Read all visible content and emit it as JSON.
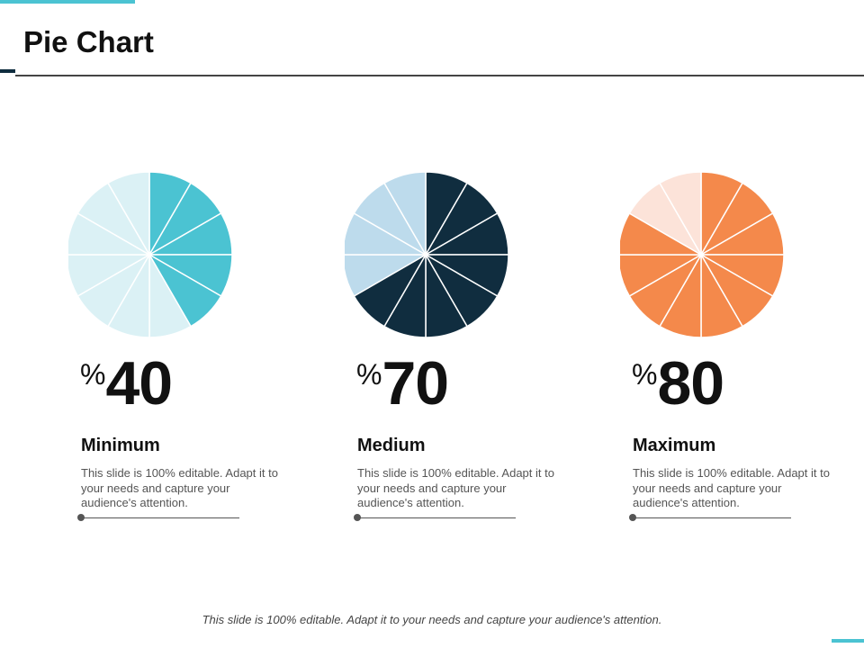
{
  "page": {
    "title": "Pie Chart"
  },
  "footer": {
    "text": "This slide is 100% editable. Adapt it to your needs and capture your audience's attention."
  },
  "chart_data": [
    {
      "type": "pie",
      "segments_total": 12,
      "value_percent": 40,
      "percent_sign": "%",
      "value_label": "40",
      "label": "Minimum",
      "description": "This slide is 100% editable. Adapt it to your needs and capture your audience's attention.",
      "filled_segments": 5,
      "colors": {
        "filled": "#4bc3d2",
        "empty": "#dbf1f5"
      }
    },
    {
      "type": "pie",
      "segments_total": 12,
      "value_percent": 70,
      "percent_sign": "%",
      "value_label": "70",
      "label": "Medium",
      "description": "This slide is 100% editable. Adapt it to your needs and capture your audience's attention.",
      "filled_segments": 8,
      "colors": {
        "filled": "#102d3f",
        "empty": "#bddbec"
      }
    },
    {
      "type": "pie",
      "segments_total": 12,
      "value_percent": 80,
      "percent_sign": "%",
      "value_label": "80",
      "label": "Maximum",
      "description": "This slide is 100% editable. Adapt it to your needs and capture your audience's attention.",
      "filled_segments": 10,
      "colors": {
        "filled": "#f4894b",
        "empty": "#fce3d9"
      }
    }
  ]
}
